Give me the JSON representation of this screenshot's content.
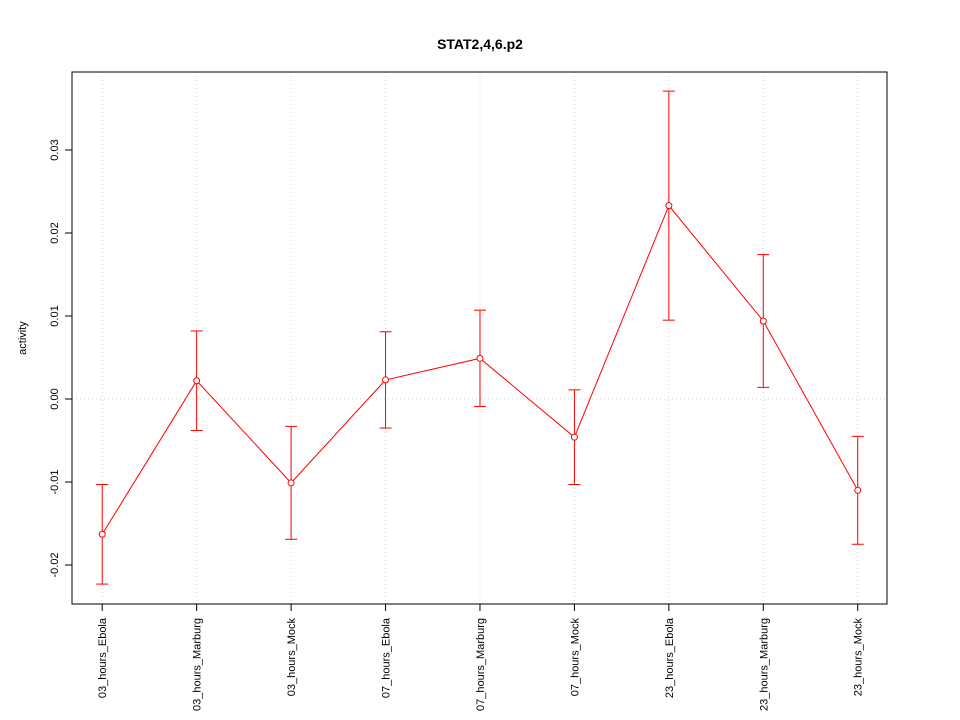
{
  "chart_data": {
    "type": "line",
    "title": "STAT2,4,6.p2",
    "ylabel": "activity",
    "categories": [
      "03_hours_Ebola",
      "03_hours_Marburg",
      "03_hours_Mock",
      "07_hours_Ebola",
      "07_hours_Marburg",
      "07_hours_Mock",
      "23_hours_Ebola",
      "23_hours_Marburg",
      "23_hours_Mock"
    ],
    "series": [
      {
        "name": "activity",
        "color": "#ff0000",
        "values": [
          -0.0163,
          0.0022,
          -0.0101,
          0.0023,
          0.0049,
          -0.0046,
          0.0233,
          0.0094,
          -0.011
        ],
        "errors": [
          0.006,
          0.006,
          0.0068,
          0.0058,
          0.0058,
          0.0057,
          0.0138,
          0.008,
          0.0065
        ]
      }
    ],
    "ylim": [
      -0.0247,
      0.0394
    ],
    "yticks": [
      -0.02,
      -0.01,
      {
        "value": 0,
        "label": "0.00"
      },
      0.01,
      0.02,
      0.03
    ],
    "grid": true,
    "hline": 0
  }
}
